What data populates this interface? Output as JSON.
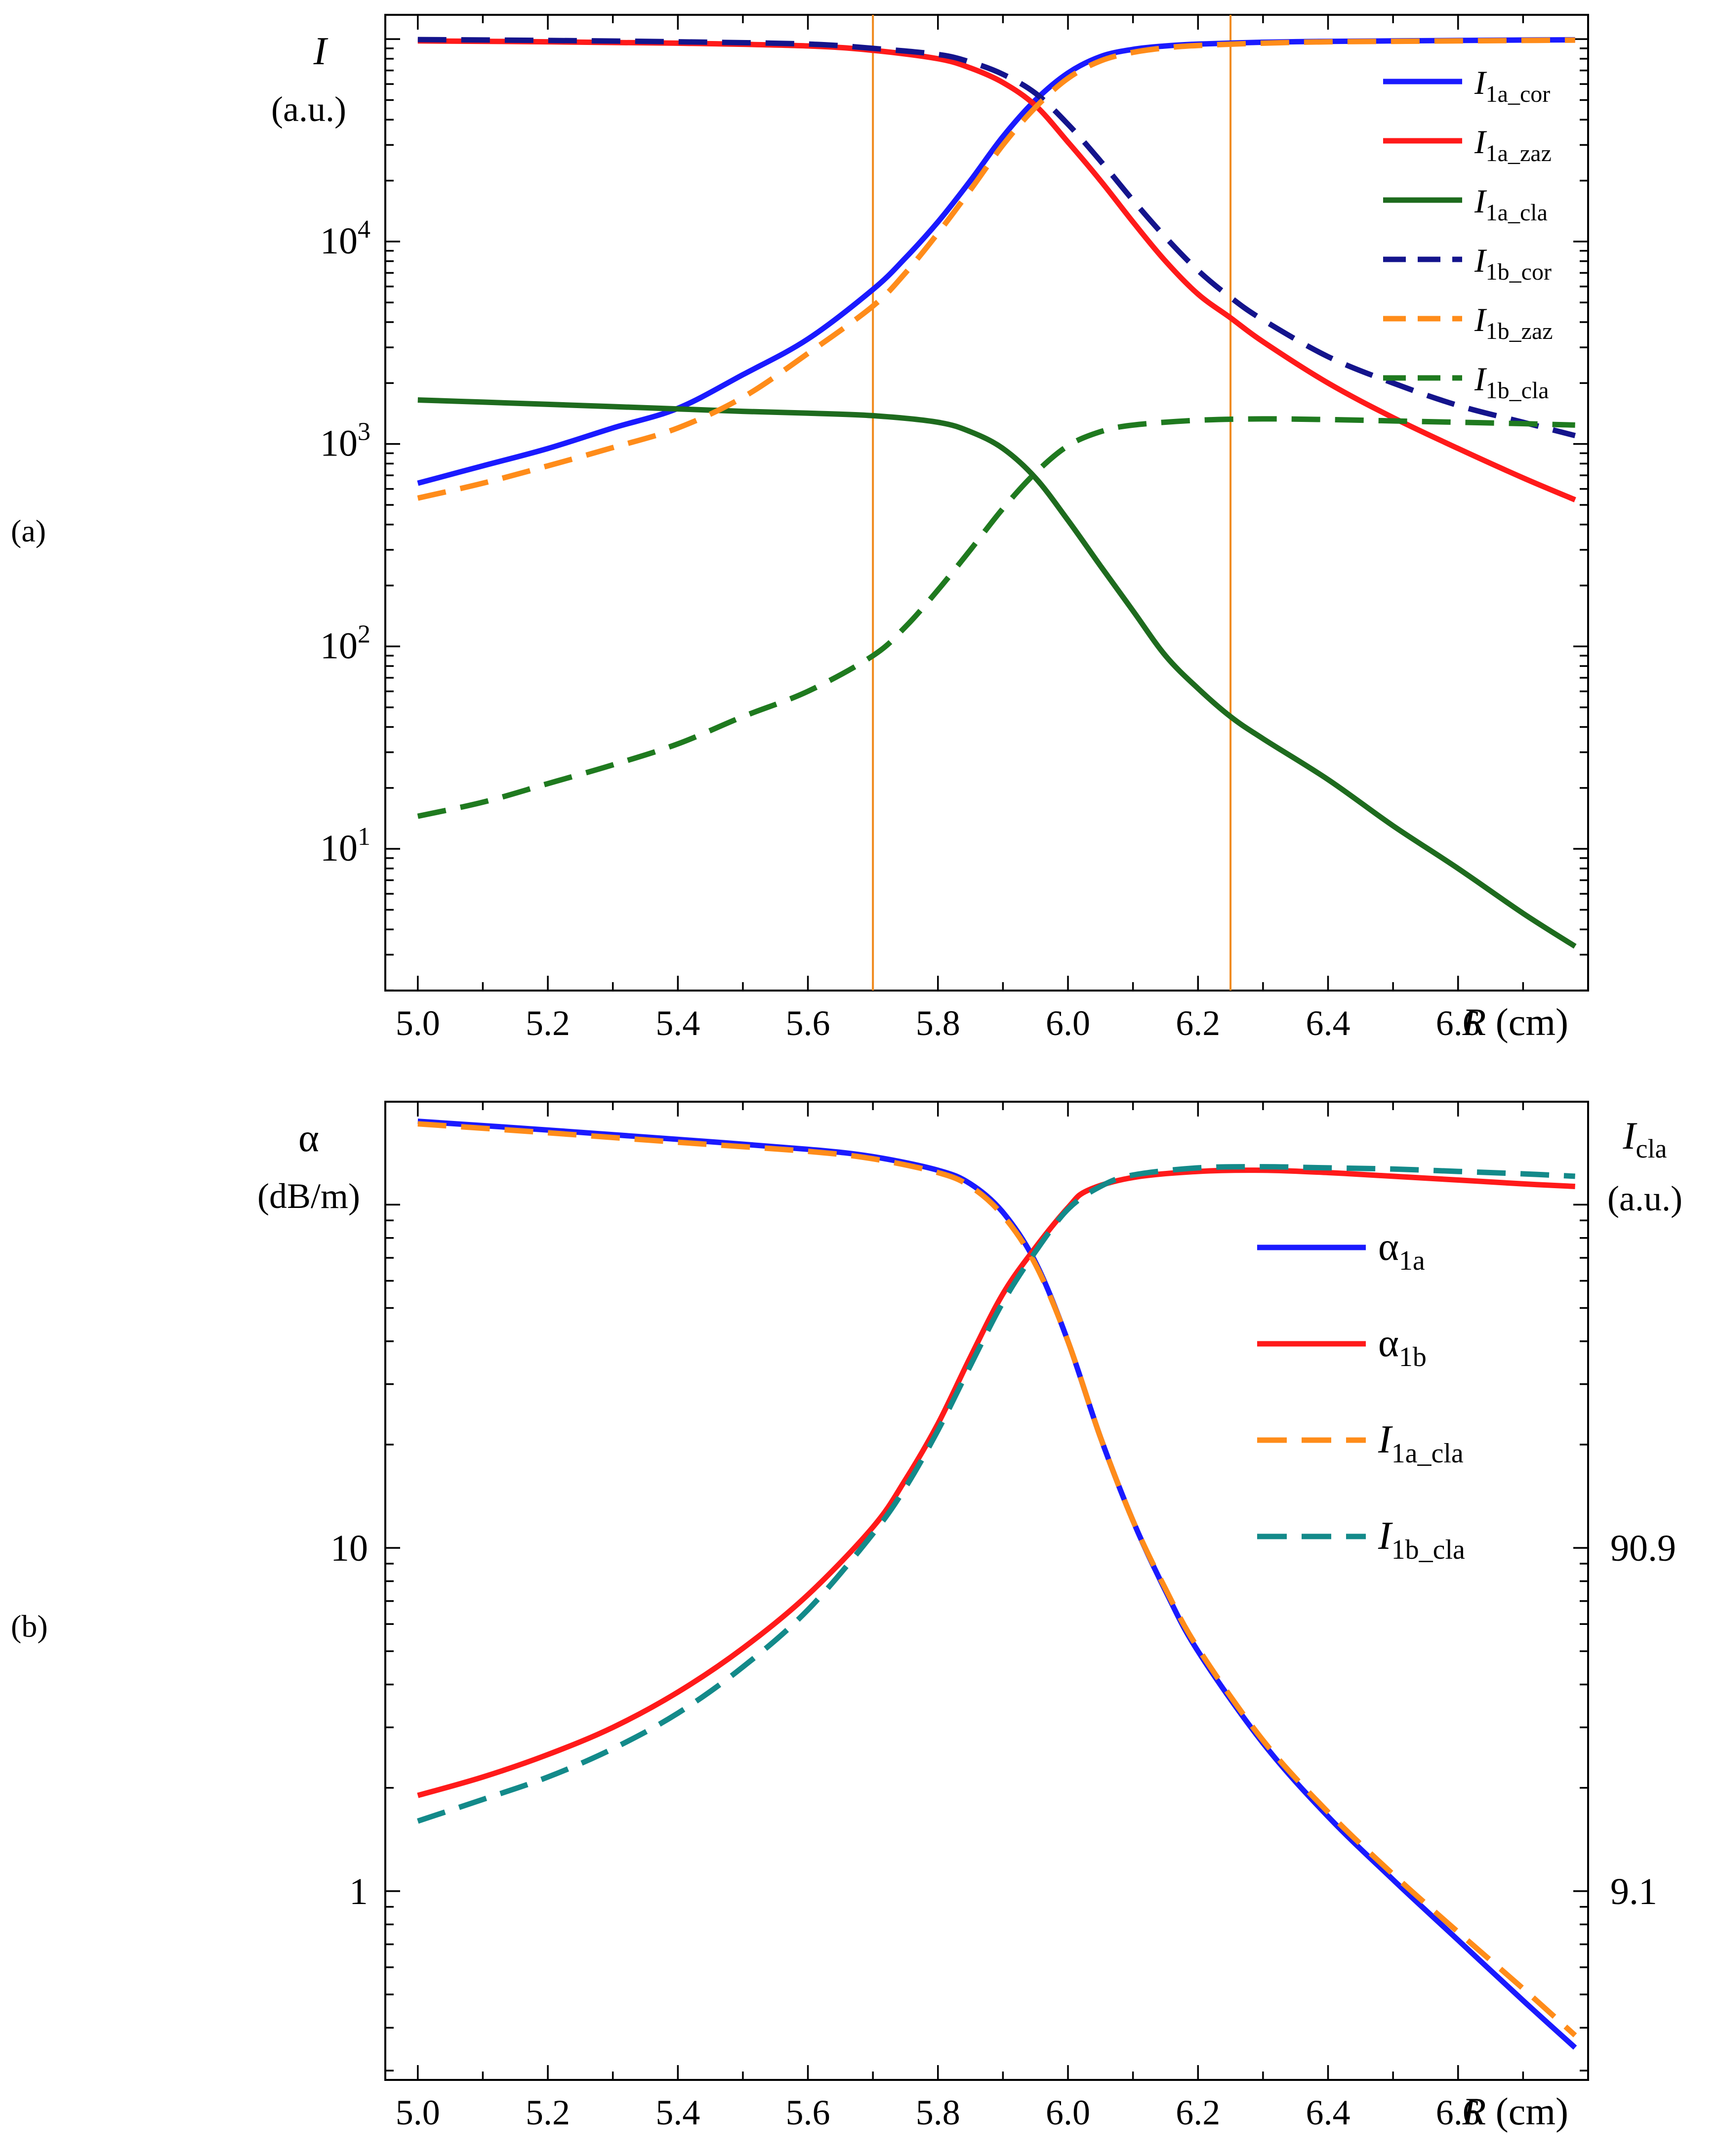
{
  "chart_data": [
    {
      "id": "a",
      "panel_label": "(a)",
      "type": "line",
      "yscale": "log",
      "xlim": [
        4.95,
        6.8
      ],
      "ylim_log10": [
        0.3,
        5.12
      ],
      "x_ticks": [
        5.0,
        5.2,
        5.4,
        5.6,
        5.8,
        6.0,
        6.2,
        6.4,
        6.6
      ],
      "x_tick_labels": [
        "5.0",
        "5.2",
        "5.4",
        "5.6",
        "5.8",
        "6.0",
        "6.2",
        "6.4",
        "6.6"
      ],
      "x_label": {
        "var": "R",
        "unit": " (cm)"
      },
      "y_ticks": [
        {
          "value": 10,
          "base": "10",
          "exp": "1"
        },
        {
          "value": 100,
          "base": "10",
          "exp": "2"
        },
        {
          "value": 1000,
          "base": "10",
          "exp": "3"
        },
        {
          "value": 10000,
          "base": "10",
          "exp": "4"
        }
      ],
      "y_label": {
        "var": "I",
        "unit": "(a.u.)"
      },
      "vlines": [
        {
          "x": 5.7,
          "color": "#f08a1e"
        },
        {
          "x": 6.25,
          "color": "#f08a1e"
        }
      ],
      "legend_position": "top-right",
      "series": [
        {
          "name": "I1a_cor",
          "label_main": "I",
          "label_sub": "1a_cor",
          "color": "#1a1aff",
          "dashed": false,
          "x": [
            5.0,
            5.1,
            5.2,
            5.3,
            5.4,
            5.5,
            5.6,
            5.7,
            5.75,
            5.8,
            5.85,
            5.9,
            5.95,
            6.0,
            6.05,
            6.1,
            6.15,
            6.2,
            6.3,
            6.4,
            6.5,
            6.6,
            6.7,
            6.78
          ],
          "y": [
            640,
            780,
            950,
            1200,
            1500,
            2200,
            3300,
            5800,
            8300,
            12500,
            20000,
            33000,
            50000,
            68000,
            82000,
            89000,
            92500,
            94500,
            96500,
            97500,
            98000,
            98500,
            99000,
            99200
          ]
        },
        {
          "name": "I1a_zaz",
          "label_main": "I",
          "label_sub": "1a_zaz",
          "color": "#ff1a1a",
          "dashed": false,
          "x": [
            5.0,
            5.2,
            5.4,
            5.6,
            5.7,
            5.8,
            5.85,
            5.9,
            5.95,
            6.0,
            6.05,
            6.1,
            6.15,
            6.2,
            6.25,
            6.3,
            6.4,
            6.5,
            6.6,
            6.7,
            6.78
          ],
          "y": [
            98000,
            97000,
            95500,
            92500,
            88000,
            80000,
            72000,
            61000,
            47000,
            31000,
            20000,
            12500,
            8000,
            5500,
            4200,
            3200,
            2000,
            1350,
            950,
            680,
            530
          ]
        },
        {
          "name": "I1a_cla",
          "label_main": "I",
          "label_sub": "1a_cla",
          "color": "#1e6b1e",
          "dashed": false,
          "x": [
            5.0,
            5.1,
            5.2,
            5.3,
            5.4,
            5.5,
            5.6,
            5.7,
            5.8,
            5.85,
            5.9,
            5.95,
            6.0,
            6.05,
            6.1,
            6.15,
            6.2,
            6.25,
            6.3,
            6.4,
            6.5,
            6.6,
            6.7,
            6.78
          ],
          "y": [
            1650,
            1610,
            1570,
            1530,
            1490,
            1450,
            1420,
            1380,
            1280,
            1150,
            950,
            680,
            420,
            250,
            150,
            90,
            62,
            45,
            35,
            22,
            13,
            8,
            4.8,
            3.3
          ]
        },
        {
          "name": "I1b_cor",
          "label_main": "I",
          "label_sub": "1b_cor",
          "color": "#14148c",
          "dashed": true,
          "x": [
            5.0,
            5.2,
            5.4,
            5.6,
            5.7,
            5.8,
            5.85,
            5.9,
            5.95,
            6.0,
            6.05,
            6.1,
            6.15,
            6.2,
            6.25,
            6.3,
            6.4,
            6.5,
            6.6,
            6.7,
            6.78
          ],
          "y": [
            99500,
            98500,
            97000,
            94500,
            90000,
            84000,
            77000,
            67000,
            54000,
            38000,
            25000,
            16000,
            10500,
            7200,
            5300,
            4100,
            2700,
            2000,
            1550,
            1280,
            1100
          ]
        },
        {
          "name": "I1b_zaz",
          "label_main": "I",
          "label_sub": "1b_zaz",
          "color": "#ff8c1a",
          "dashed": true,
          "x": [
            5.0,
            5.1,
            5.2,
            5.3,
            5.4,
            5.5,
            5.6,
            5.7,
            5.75,
            5.8,
            5.85,
            5.9,
            5.95,
            6.0,
            6.05,
            6.1,
            6.15,
            6.2,
            6.3,
            6.4,
            6.5,
            6.6,
            6.7,
            6.78
          ],
          "y": [
            540,
            640,
            780,
            960,
            1200,
            1700,
            2800,
            4800,
            7000,
            11000,
            18000,
            30000,
            46000,
            64000,
            78000,
            86000,
            90500,
            93000,
            95500,
            97000,
            97500,
            98000,
            98500,
            98800
          ]
        },
        {
          "name": "I1b_cla",
          "label_main": "I",
          "label_sub": "1b_cla",
          "color": "#1f7a1f",
          "dashed": true,
          "x": [
            5.0,
            5.1,
            5.2,
            5.3,
            5.4,
            5.5,
            5.6,
            5.7,
            5.75,
            5.8,
            5.85,
            5.9,
            5.95,
            6.0,
            6.05,
            6.1,
            6.2,
            6.3,
            6.4,
            6.5,
            6.6,
            6.7,
            6.78
          ],
          "y": [
            14.5,
            17,
            21,
            26,
            33,
            45,
            60,
            90,
            125,
            190,
            300,
            480,
            720,
            980,
            1150,
            1240,
            1310,
            1330,
            1320,
            1300,
            1280,
            1260,
            1240
          ]
        }
      ]
    },
    {
      "id": "b",
      "panel_label": "(b)",
      "type": "line",
      "yscale": "log",
      "xlim": [
        4.95,
        6.8
      ],
      "ylim_log10": [
        -0.55,
        2.3
      ],
      "x_ticks": [
        5.0,
        5.2,
        5.4,
        5.6,
        5.8,
        6.0,
        6.2,
        6.4,
        6.6
      ],
      "x_tick_labels": [
        "5.0",
        "5.2",
        "5.4",
        "5.6",
        "5.8",
        "6.0",
        "6.2",
        "6.4",
        "6.6"
      ],
      "x_label": {
        "var": "R",
        "unit": " (cm)"
      },
      "y_ticks": [
        {
          "value": 1,
          "label": "1"
        },
        {
          "value": 10,
          "label": "10"
        }
      ],
      "y_label": {
        "var": "α",
        "unit": "(dB/m)"
      },
      "y2_ticks": [
        {
          "at": 1,
          "label": "9.1"
        },
        {
          "at": 10,
          "label": "90.9"
        }
      ],
      "y2_label": {
        "var": "I",
        "sub": "cla",
        "unit": "(a.u.)"
      },
      "legend_position": "top-right",
      "series": [
        {
          "name": "α1a",
          "label_main": "α",
          "label_sub": "1a",
          "color": "#1a1aff",
          "dashed": false,
          "x": [
            5.0,
            5.2,
            5.4,
            5.6,
            5.7,
            5.8,
            5.85,
            5.9,
            5.95,
            6.0,
            6.05,
            6.1,
            6.15,
            6.2,
            6.3,
            6.4,
            6.5,
            6.6,
            6.7,
            6.78
          ],
          "y": [
            175,
            165,
            155,
            145,
            138,
            126,
            115,
            95,
            68,
            40,
            21,
            12,
            7.5,
            5.0,
            2.7,
            1.65,
            1.08,
            0.72,
            0.48,
            0.35
          ]
        },
        {
          "name": "α1b",
          "label_main": "α",
          "label_sub": "1b",
          "color": "#ff1a1a",
          "dashed": false,
          "x": [
            5.0,
            5.1,
            5.2,
            5.3,
            5.4,
            5.5,
            5.6,
            5.7,
            5.75,
            5.8,
            5.85,
            5.9,
            5.95,
            6.0,
            6.03,
            6.1,
            6.2,
            6.3,
            6.4,
            6.5,
            6.6,
            6.7,
            6.78
          ],
          "y": [
            1.9,
            2.15,
            2.5,
            3.0,
            3.8,
            5.1,
            7.3,
            11.5,
            15.8,
            23,
            36,
            55,
            75,
            98,
            110,
            120,
            125,
            126,
            124,
            121,
            118,
            115,
            113
          ]
        },
        {
          "name": "I1a_cla",
          "label_main": "I",
          "label_sub": "1a_cla",
          "color": "#ff8c1a",
          "dashed": true,
          "x": [
            5.0,
            5.2,
            5.4,
            5.6,
            5.7,
            5.8,
            5.85,
            5.9,
            5.95,
            6.0,
            6.05,
            6.1,
            6.15,
            6.2,
            6.3,
            6.4,
            6.5,
            6.6,
            6.7,
            6.78
          ],
          "y": [
            172,
            162,
            152,
            143,
            136,
            124,
            113,
            93,
            67,
            40,
            21,
            12,
            7.6,
            5.1,
            2.75,
            1.7,
            1.12,
            0.76,
            0.52,
            0.38
          ]
        },
        {
          "name": "I1b_cla",
          "label_main": "I",
          "label_sub": "1b_cla",
          "color": "#138a8a",
          "dashed": true,
          "x": [
            5.0,
            5.1,
            5.2,
            5.3,
            5.4,
            5.5,
            5.6,
            5.7,
            5.75,
            5.8,
            5.85,
            5.9,
            5.95,
            6.0,
            6.05,
            6.1,
            6.2,
            6.3,
            6.4,
            6.5,
            6.6,
            6.7,
            6.78
          ],
          "y": [
            1.6,
            1.85,
            2.15,
            2.6,
            3.3,
            4.5,
            6.6,
            11,
            15,
            22,
            34,
            52,
            73,
            97,
            113,
            122,
            128,
            129,
            128,
            127,
            125,
            123,
            121
          ]
        }
      ]
    }
  ]
}
